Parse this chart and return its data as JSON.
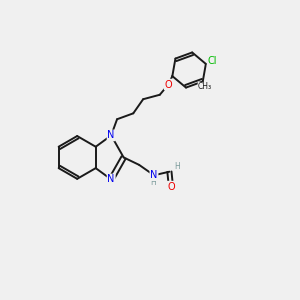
{
  "background_color": "#f0f0f0",
  "bond_color": "#1a1a1a",
  "atom_colors": {
    "N": "#0000ee",
    "O": "#ee0000",
    "Cl": "#00bb00",
    "C": "#1a1a1a",
    "H": "#7a9a9a"
  },
  "figsize": [
    3.0,
    3.0
  ],
  "dpi": 100
}
